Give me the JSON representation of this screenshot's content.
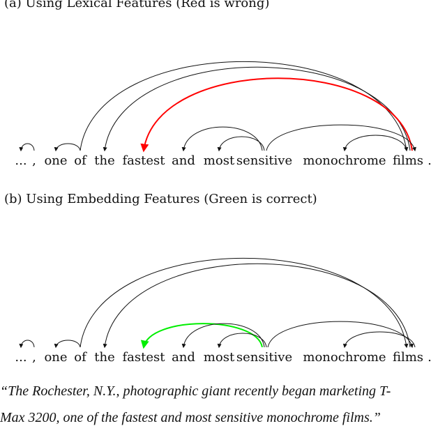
{
  "panel_a": {
    "title": "(a) Using Lexical Features (Red is wrong)",
    "highlight_color": "#ff0000",
    "tokens": [
      "...",
      ",",
      "one",
      "of",
      "the",
      "fastest",
      "and",
      "most",
      "sensitive",
      "monochrome",
      "films",
      "."
    ],
    "arcs": [
      {
        "head": ",",
        "dependent": "..."
      },
      {
        "head": "of",
        "dependent": "one"
      },
      {
        "head": "of",
        "dependent": "films"
      },
      {
        "head": "films",
        "dependent": "the"
      },
      {
        "head": "films",
        "dependent": "fastest",
        "highlight": true
      },
      {
        "head": "sensitive",
        "dependent": "and"
      },
      {
        "head": "sensitive",
        "dependent": "most"
      },
      {
        "head": "sensitive",
        "dependent": "films"
      },
      {
        "head": "films",
        "dependent": "monochrome"
      }
    ]
  },
  "panel_b": {
    "title": "(b) Using Embedding Features (Green is correct)",
    "highlight_color": "#00ee00",
    "tokens": [
      "...",
      ",",
      "one",
      "of",
      "the",
      "fastest",
      "and",
      "most",
      "sensitive",
      "monochrome",
      "films",
      "."
    ],
    "arcs": [
      {
        "head": ",",
        "dependent": "..."
      },
      {
        "head": "of",
        "dependent": "one"
      },
      {
        "head": "of",
        "dependent": "films"
      },
      {
        "head": "films",
        "dependent": "the"
      },
      {
        "head": "sensitive",
        "dependent": "fastest",
        "highlight": true
      },
      {
        "head": "sensitive",
        "dependent": "and"
      },
      {
        "head": "sensitive",
        "dependent": "most"
      },
      {
        "head": "sensitive",
        "dependent": "films"
      },
      {
        "head": "films",
        "dependent": "monochrome"
      }
    ]
  },
  "caption": {
    "line1": "“The Rochester, N.Y., photographic giant recently began marketing T-",
    "line2": "Max 3200, one of the fastest and most sensitive monochrome films.”"
  }
}
